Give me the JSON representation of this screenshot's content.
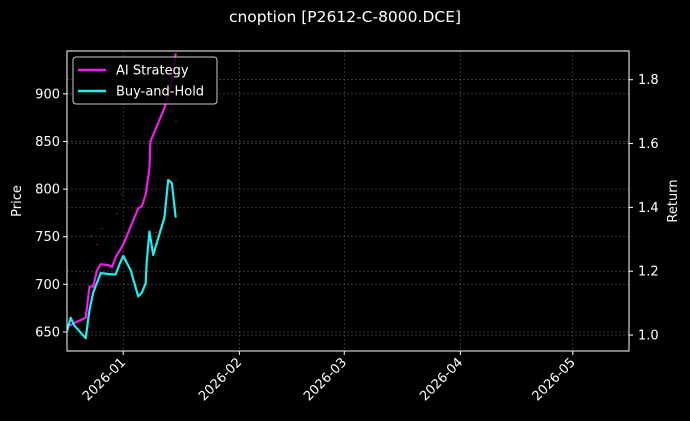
{
  "title": "cnoption [P2612-C-8000.DCE]",
  "colors": {
    "background": "#000000",
    "ai_strategy": "#ee1cee",
    "buy_and_hold": "#22eeee",
    "grid": "#555555",
    "markers": "#8b0a1e"
  },
  "chart_data": {
    "type": "line",
    "title": "cnoption [P2612-C-8000.DCE]",
    "xlabel": "",
    "ylabel": "Price",
    "ylabel_right": "Return",
    "x_tick_labels": [
      "2026-01",
      "2026-02",
      "2026-03",
      "2026-04",
      "2026-05"
    ],
    "y_left_ticks": [
      650,
      700,
      750,
      800,
      850,
      900
    ],
    "y_right_ticks": [
      1.0,
      1.2,
      1.4,
      1.6,
      1.8
    ],
    "ylim_left": [
      630,
      945
    ],
    "ylim_right": [
      0.95,
      1.89
    ],
    "xlim": [
      "2025-12-17",
      "2026-05-16"
    ],
    "grid": true,
    "legend_position": "upper left",
    "series": [
      {
        "name": "AI Strategy",
        "axis": "right",
        "x": [
          "2025-12-17",
          "2025-12-19",
          "2025-12-22",
          "2025-12-23",
          "2025-12-24",
          "2025-12-25",
          "2025-12-26",
          "2025-12-28",
          "2025-12-29",
          "2025-12-30",
          "2026-01-01",
          "2026-01-05",
          "2026-01-06",
          "2026-01-07",
          "2026-01-08",
          "2026-01-08",
          "2026-01-12",
          "2026-01-14",
          "2026-01-15"
        ],
        "values": [
          1.025,
          1.038,
          1.054,
          1.152,
          1.152,
          1.203,
          1.222,
          1.219,
          1.213,
          1.244,
          1.283,
          1.397,
          1.403,
          1.441,
          1.521,
          1.606,
          1.711,
          1.787,
          1.883
        ]
      },
      {
        "name": "Buy-and-Hold",
        "axis": "right",
        "x": [
          "2025-12-17",
          "2025-12-18",
          "2025-12-19",
          "2025-12-22",
          "2025-12-23",
          "2025-12-24",
          "2025-12-26",
          "2025-12-29",
          "2025-12-30",
          "2025-12-31",
          "2026-01-01",
          "2026-01-03",
          "2026-01-05",
          "2026-01-06",
          "2026-01-07",
          "2026-01-07",
          "2026-01-08",
          "2026-01-09",
          "2026-01-12",
          "2026-01-13",
          "2026-01-14",
          "2026-01-15"
        ],
        "values": [
          1.013,
          1.054,
          1.029,
          0.99,
          1.079,
          1.133,
          1.194,
          1.19,
          1.19,
          1.222,
          1.248,
          1.203,
          1.121,
          1.133,
          1.162,
          1.229,
          1.324,
          1.251,
          1.368,
          1.486,
          1.476,
          1.368
        ]
      }
    ]
  },
  "legend": [
    {
      "label": "AI Strategy"
    },
    {
      "label": "Buy-and-Hold"
    }
  ]
}
